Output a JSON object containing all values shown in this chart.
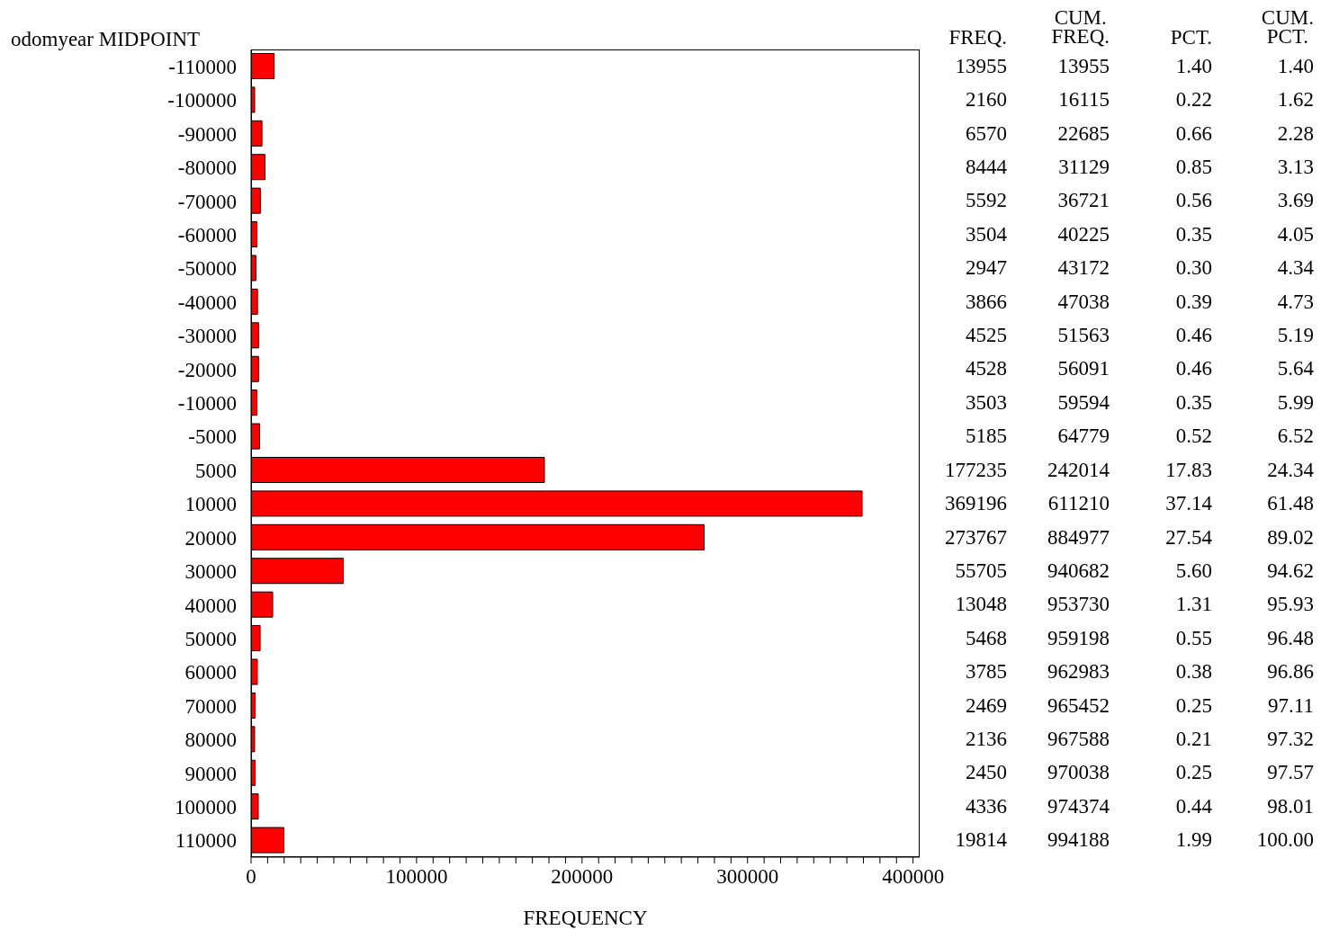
{
  "chart_data": {
    "type": "bar",
    "orientation": "horizontal",
    "ylabel": "odomyear MIDPOINT",
    "xlabel": "FREQUENCY",
    "categories": [
      "-110000",
      "-100000",
      "-90000",
      "-80000",
      "-70000",
      "-60000",
      "-50000",
      "-40000",
      "-30000",
      "-20000",
      "-10000",
      "-5000",
      "5000",
      "10000",
      "20000",
      "30000",
      "40000",
      "50000",
      "60000",
      "70000",
      "80000",
      "90000",
      "100000",
      "110000"
    ],
    "values": [
      13955,
      2160,
      6570,
      8444,
      5592,
      3504,
      2947,
      3866,
      4525,
      4528,
      3503,
      5185,
      177235,
      369196,
      273767,
      55705,
      13048,
      5468,
      3785,
      2469,
      2136,
      2450,
      4336,
      19814
    ],
    "color": "#ff0000",
    "data_labels": true,
    "xlim": [
      0,
      404000
    ],
    "xticks": [
      0,
      {
        "value": 10000,
        "label": null
      },
      {
        "value": 20000,
        "label": null
      },
      {
        "value": 30000,
        "label": null
      },
      {
        "value": 40000,
        "label": null
      },
      {
        "value": 50000,
        "label": null
      },
      {
        "value": 60000,
        "label": null
      },
      {
        "value": 70000,
        "label": null
      },
      {
        "value": 80000,
        "label": null
      },
      {
        "value": 90000,
        "label": null
      },
      100000,
      {
        "value": 110000,
        "label": null
      },
      {
        "value": 120000,
        "label": null
      },
      {
        "value": 130000,
        "label": null
      },
      {
        "value": 140000,
        "label": null
      },
      {
        "value": 150000,
        "label": null
      },
      {
        "value": 160000,
        "label": null
      },
      {
        "value": 170000,
        "label": null
      },
      {
        "value": 180000,
        "label": null
      },
      {
        "value": 190000,
        "label": null
      },
      200000,
      {
        "value": 210000,
        "label": null
      },
      {
        "value": 220000,
        "label": null
      },
      {
        "value": 230000,
        "label": null
      },
      {
        "value": 240000,
        "label": null
      },
      {
        "value": 250000,
        "label": null
      },
      {
        "value": 260000,
        "label": null
      },
      {
        "value": 270000,
        "label": null
      },
      {
        "value": 280000,
        "label": null
      },
      {
        "value": 290000,
        "label": null
      },
      300000,
      {
        "value": 310000,
        "label": null
      },
      {
        "value": 320000,
        "label": null
      },
      {
        "value": 330000,
        "label": null
      },
      {
        "value": 340000,
        "label": null
      },
      {
        "value": 350000,
        "label": null
      },
      {
        "value": 360000,
        "label": null
      },
      {
        "value": 370000,
        "label": null
      },
      {
        "value": 380000,
        "label": null
      },
      {
        "value": 390000,
        "label": null
      },
      400000
    ],
    "annotations": [
      "FREQ.",
      "CUM. FREQ.",
      "PCT.",
      "CUM. PCT.",
      "13955",
      "1.40",
      "1.40",
      "16115",
      "0.22",
      "1.62",
      "22685",
      "0.66",
      "2.28",
      "31129",
      "0.85",
      "3.13",
      "36721",
      "0.56",
      "3.69",
      "40225",
      "0.35",
      "4.05",
      "43172",
      "0.30",
      "4.34",
      "47038",
      "0.39",
      "4.73",
      "51563",
      "0.46",
      "5.19",
      "56091",
      "0.46",
      "5.64",
      "59594",
      "0.35",
      "5.99",
      "64779",
      "0.52",
      "6.52",
      "242014",
      "17.83",
      "24.34",
      "611210",
      "37.14",
      "61.48",
      "884977",
      "27.54",
      "89.02",
      "940682",
      "5.60",
      "94.62",
      "953730",
      "1.31",
      "95.93",
      "959198",
      "0.55",
      "96.48",
      "962983",
      "0.38",
      "96.86",
      "965452",
      "0.25",
      "97.11",
      "967588",
      "0.21",
      "97.32",
      "970038",
      "0.25",
      "97.57",
      "974374",
      "0.44",
      "98.01",
      "994188",
      "1.99",
      "100.00"
    ]
  }
}
